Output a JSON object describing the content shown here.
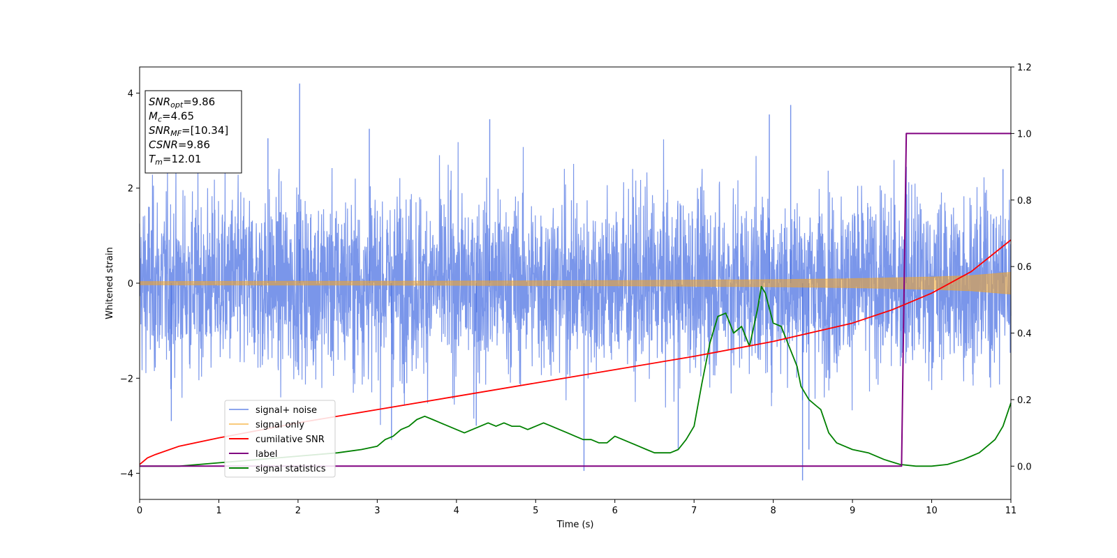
{
  "chart_data": {
    "type": "line",
    "xlabel": "Time (s)",
    "ylabel": "Whitened strain",
    "xlim": [
      0,
      11
    ],
    "ylim_left": [
      -4.55,
      4.55
    ],
    "ylim_right": [
      -0.1,
      1.2
    ],
    "x_ticks": [
      0,
      1,
      2,
      3,
      4,
      5,
      6,
      7,
      8,
      9,
      10,
      11
    ],
    "y_ticks_left": [
      -4,
      -2,
      0,
      2,
      4
    ],
    "y_ticks_right": [
      0.0,
      0.2,
      0.4,
      0.6,
      0.8,
      1.0,
      1.2
    ],
    "y_tick_labels_right": [
      "0.0",
      "0.2",
      "0.4",
      "0.6",
      "0.8",
      "1.0",
      "1.2"
    ],
    "grid": false,
    "legend_position": "lower-left",
    "annotation": [
      {
        "name": "SNR",
        "sub": "opt",
        "value": "=9.86"
      },
      {
        "name": "M",
        "sub": "c",
        "value": "=4.65"
      },
      {
        "name": "SNR",
        "sub": "MF",
        "value": "=[10.34]"
      },
      {
        "name": "CSNR",
        "sub": "",
        "value": "=9.86"
      },
      {
        "name": "T",
        "sub": "m",
        "value": "=12.01"
      }
    ],
    "series": [
      {
        "name": "signal+ noise",
        "axis": "left",
        "color": "#4169e1",
        "description": "noise-dominated strain, roughly ±1 sigma with spikes up to ±4",
        "typical_band": [
          -1.7,
          1.7
        ],
        "spikes": [
          [
            0.4,
            -2.9
          ],
          [
            1.62,
            3.05
          ],
          [
            2.02,
            4.2
          ],
          [
            2.9,
            3.25
          ],
          [
            3.18,
            -3.3
          ],
          [
            4.25,
            -3.0
          ],
          [
            4.42,
            3.45
          ],
          [
            5.61,
            -3.95
          ],
          [
            6.8,
            -3.5
          ],
          [
            7.95,
            3.55
          ],
          [
            8.22,
            3.75
          ],
          [
            8.37,
            -4.15
          ],
          [
            8.45,
            -3.5
          ],
          [
            9.68,
            2.45
          ],
          [
            10.9,
            2.4
          ]
        ]
      },
      {
        "name": "signal only",
        "axis": "left",
        "color": "#f5a623",
        "description": "chirp envelope (amplitude vs time)",
        "x": [
          0,
          2,
          4,
          6,
          8,
          9,
          10,
          10.5,
          11
        ],
        "amplitude": [
          0.035,
          0.04,
          0.045,
          0.055,
          0.075,
          0.095,
          0.13,
          0.16,
          0.23
        ]
      },
      {
        "name": "cumilative SNR",
        "axis": "right",
        "color": "#ff0000",
        "x": [
          0,
          0.1,
          0.2,
          0.5,
          1,
          2,
          3,
          4,
          5,
          6,
          7,
          8,
          9,
          9.5,
          10,
          10.5,
          11
        ],
        "values": [
          0.005,
          0.025,
          0.035,
          0.06,
          0.085,
          0.13,
          0.17,
          0.21,
          0.25,
          0.29,
          0.33,
          0.375,
          0.43,
          0.47,
          0.52,
          0.585,
          0.68
        ]
      },
      {
        "name": "label",
        "axis": "right",
        "color": "#800080",
        "x": [
          0,
          9.62,
          9.68,
          11
        ],
        "values": [
          0,
          0,
          1,
          1
        ]
      },
      {
        "name": "signal statistics",
        "axis": "right",
        "color": "#008000",
        "x": [
          0,
          0.5,
          1,
          1.5,
          2,
          2.5,
          2.8,
          3.0,
          3.1,
          3.2,
          3.3,
          3.4,
          3.5,
          3.6,
          3.7,
          3.8,
          3.9,
          4.0,
          4.1,
          4.2,
          4.3,
          4.4,
          4.5,
          4.6,
          4.7,
          4.8,
          4.9,
          5.0,
          5.1,
          5.2,
          5.3,
          5.4,
          5.5,
          5.6,
          5.7,
          5.8,
          5.9,
          6.0,
          6.1,
          6.2,
          6.3,
          6.4,
          6.5,
          6.6,
          6.7,
          6.8,
          6.9,
          7.0,
          7.1,
          7.2,
          7.3,
          7.4,
          7.5,
          7.6,
          7.7,
          7.8,
          7.85,
          7.9,
          8.0,
          8.1,
          8.2,
          8.3,
          8.35,
          8.45,
          8.55,
          8.6,
          8.7,
          8.8,
          8.9,
          9.0,
          9.2,
          9.4,
          9.6,
          9.8,
          10.0,
          10.2,
          10.4,
          10.5,
          10.6,
          10.7,
          10.8,
          10.9,
          11.0
        ],
        "values": [
          0.0,
          0.0,
          0.01,
          0.02,
          0.03,
          0.04,
          0.05,
          0.06,
          0.08,
          0.09,
          0.11,
          0.12,
          0.14,
          0.15,
          0.14,
          0.13,
          0.12,
          0.11,
          0.1,
          0.11,
          0.12,
          0.13,
          0.12,
          0.13,
          0.12,
          0.12,
          0.11,
          0.12,
          0.13,
          0.12,
          0.11,
          0.1,
          0.09,
          0.08,
          0.08,
          0.07,
          0.07,
          0.09,
          0.08,
          0.07,
          0.06,
          0.05,
          0.04,
          0.04,
          0.04,
          0.05,
          0.08,
          0.12,
          0.25,
          0.37,
          0.45,
          0.46,
          0.4,
          0.42,
          0.36,
          0.47,
          0.54,
          0.52,
          0.43,
          0.42,
          0.36,
          0.3,
          0.24,
          0.2,
          0.18,
          0.17,
          0.1,
          0.07,
          0.06,
          0.05,
          0.04,
          0.02,
          0.005,
          0.0,
          0.0,
          0.005,
          0.02,
          0.03,
          0.04,
          0.06,
          0.08,
          0.12,
          0.19
        ]
      }
    ]
  }
}
